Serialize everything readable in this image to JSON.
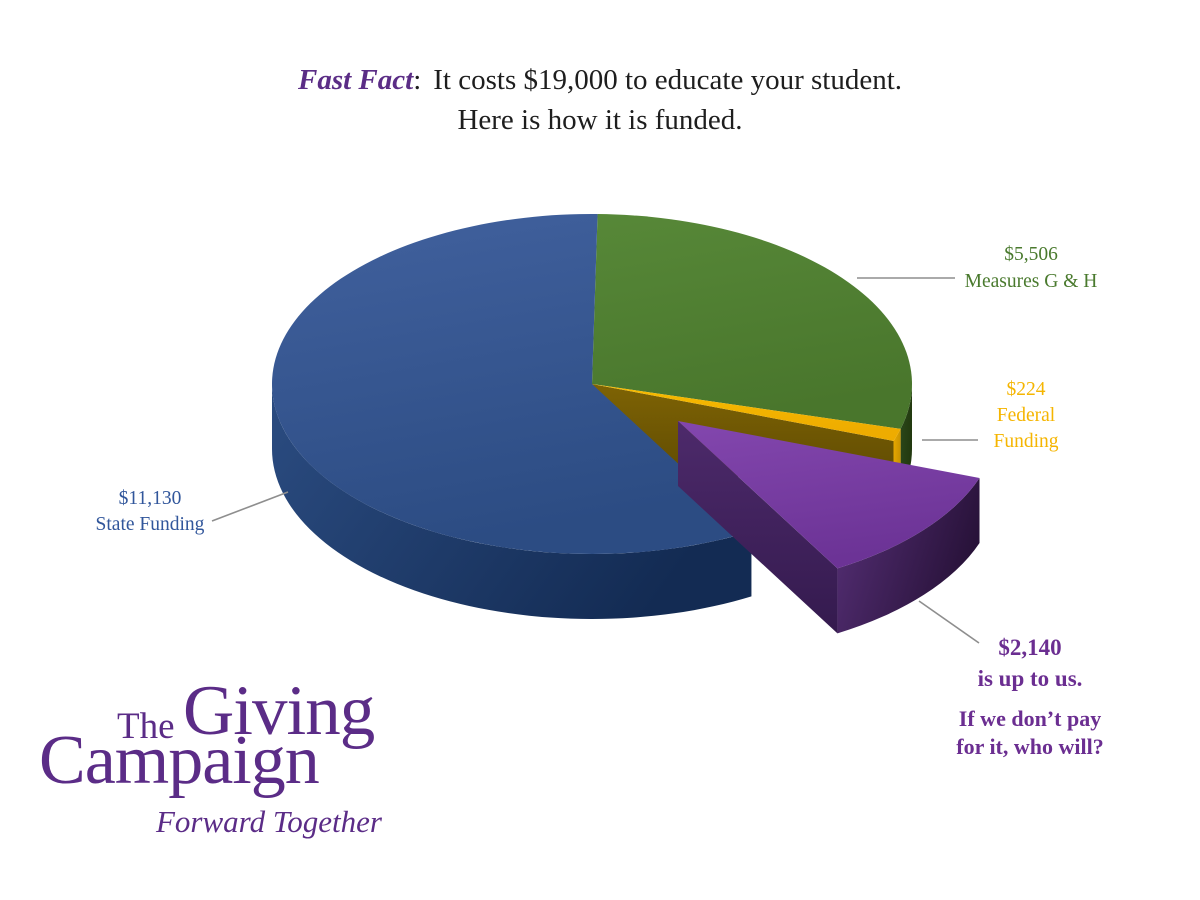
{
  "title": {
    "highlight": "Fast Fact",
    "colon": ":",
    "line1_rest": "It costs $19,000 to educate your student.",
    "line2": "Here is how it is funded."
  },
  "colors": {
    "background": "#FFFFFF",
    "title_text": "#1E1E1E",
    "fast_fact": "#5B2D86",
    "leader_line": "#8E8E8E"
  },
  "chart_data": {
    "type": "pie",
    "title": "How the $19,000 cost to educate a student is funded",
    "total": 19000,
    "currency": "USD",
    "start_angle_deg": 89,
    "direction": "clockwise",
    "style": "3d-exploded",
    "slices": [
      {
        "id": "measures-g-h",
        "label": "Measures G & H",
        "value": 5506,
        "display_value": "$5,506",
        "callout_lines": [
          "$5,506",
          "Measures G & H"
        ],
        "exploded": false,
        "colors": {
          "top0": "#578838",
          "top1": "#49762C",
          "side0": "#2B481B",
          "side1": "#22390F",
          "label": "#4A7A2E"
        }
      },
      {
        "id": "federal-funding",
        "label": "Federal Funding",
        "value": 224,
        "display_value": "$224",
        "callout_lines": [
          "$224",
          "Federal",
          "Funding"
        ],
        "exploded": false,
        "colors": {
          "top0": "#F7BB00",
          "top1": "#EEAC00",
          "side0": "#E9A900",
          "side1": "#C89200",
          "cut0": "#7E6304",
          "cut1": "#584502",
          "label": "#F5B501"
        }
      },
      {
        "id": "up-to-us",
        "label": "is up to us.",
        "value": 2140,
        "display_value": "$2,140",
        "callout_lines": [
          "$2,140",
          "is up to us."
        ],
        "exploded": true,
        "colors": {
          "top0": "#8347AE",
          "top1": "#6C3396",
          "side0": "#573078",
          "side1": "#281239",
          "cut0": "#4D2A6B",
          "cut1": "#341A4E",
          "label": "#6B2E91"
        }
      },
      {
        "id": "state-funding",
        "label": "State Funding",
        "value": 11130,
        "display_value": "$11,130",
        "callout_lines": [
          "$11,130",
          "State Funding"
        ],
        "exploded": false,
        "colors": {
          "top0": "#41619E",
          "top1": "#2C4C83",
          "side0": "#2B4C81",
          "side1": "#132B53",
          "label": "#31569B"
        }
      }
    ]
  },
  "footer_note": {
    "line1": "If we don’t pay",
    "line2": "for it, who will?"
  },
  "logo": {
    "the": "The",
    "giving": "Giving",
    "campaign": "Campaign",
    "tagline": "Forward Together",
    "color": "#5B2C87"
  }
}
